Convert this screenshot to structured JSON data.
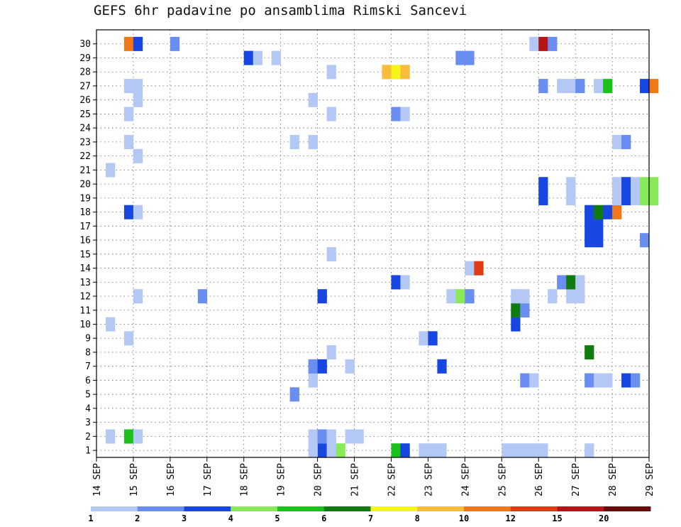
{
  "title": "GEFS 6hr padavine po ansamblima Rimski Sancevi",
  "chart_data": {
    "type": "heatmap",
    "title": "GEFS 6hr padavine po ansamblima Rimski Sancevi",
    "x_tick_labels": [
      "14 SEP",
      "15 SEP",
      "16 SEP",
      "17 SEP",
      "18 SEP",
      "19 SEP",
      "20 SEP",
      "21 SEP",
      "22 SEP",
      "23 SEP",
      "24 SEP",
      "25 SEP",
      "26 SEP",
      "27 SEP",
      "28 SEP",
      "29 SEP"
    ],
    "x_range_days": [
      14,
      29
    ],
    "time_step_hours": 6,
    "y_tick_labels": [
      1,
      2,
      3,
      4,
      5,
      6,
      7,
      8,
      9,
      10,
      11,
      12,
      13,
      14,
      15,
      16,
      17,
      18,
      19,
      20,
      21,
      22,
      23,
      24,
      25,
      26,
      27,
      28,
      29,
      30
    ],
    "y_label": "",
    "grid": true,
    "legend": {
      "position": "bottom",
      "bins": [
        {
          "label": "1",
          "color": "#b4c8f5"
        },
        {
          "label": "2",
          "color": "#6a8ef0"
        },
        {
          "label": "3",
          "color": "#1846e0"
        },
        {
          "label": "4",
          "color": "#88ea58"
        },
        {
          "label": "5",
          "color": "#1cc21c"
        },
        {
          "label": "6",
          "color": "#107c10"
        },
        {
          "label": "7",
          "color": "#f5f51a"
        },
        {
          "label": "8",
          "color": "#f8bc3a"
        },
        {
          "label": "10",
          "color": "#f07818"
        },
        {
          "label": "12",
          "color": "#e03c14"
        },
        {
          "label": "15",
          "color": "#b41414"
        },
        {
          "label": "20",
          "color": "#6a0c0c"
        }
      ]
    },
    "cells_units": "each cell = [member, day_of_september (start of 6h step), class_index (0 = 1-2 mm ... 11 = >20 mm)]",
    "cells": [
      [
        1,
        22.75,
        0
      ],
      [
        1,
        23.0,
        0
      ],
      [
        1,
        23.25,
        0
      ],
      [
        1,
        20.25,
        3
      ],
      [
        1,
        20.5,
        3
      ],
      [
        1,
        20.0,
        2
      ],
      [
        1,
        20.25,
        0
      ],
      [
        1,
        19.75,
        0
      ],
      [
        1,
        25.5,
        0
      ],
      [
        1,
        25.25,
        0
      ],
      [
        1,
        25.0,
        0
      ],
      [
        1,
        25.75,
        0
      ],
      [
        1,
        26.0,
        0
      ],
      [
        1,
        27.25,
        0
      ],
      [
        1,
        22.0,
        4
      ],
      [
        1,
        22.25,
        2
      ],
      [
        2,
        14.25,
        0
      ],
      [
        2,
        14.75,
        4
      ],
      [
        2,
        15.0,
        0
      ],
      [
        2,
        19.75,
        0
      ],
      [
        2,
        20.0,
        1
      ],
      [
        2,
        20.25,
        0
      ],
      [
        2,
        20.75,
        0
      ],
      [
        2,
        21.0,
        0
      ],
      [
        5,
        19.25,
        1
      ],
      [
        6,
        19.75,
        0
      ],
      [
        6,
        25.5,
        1
      ],
      [
        6,
        25.75,
        0
      ],
      [
        6,
        27.25,
        1
      ],
      [
        6,
        27.5,
        0
      ],
      [
        6,
        27.75,
        0
      ],
      [
        6,
        28.25,
        2
      ],
      [
        6,
        28.5,
        1
      ],
      [
        7,
        19.75,
        1
      ],
      [
        7,
        20.0,
        2
      ],
      [
        7,
        20.75,
        0
      ],
      [
        7,
        23.25,
        2
      ],
      [
        8,
        20.25,
        0
      ],
      [
        8,
        27.25,
        5
      ],
      [
        9,
        14.75,
        0
      ],
      [
        9,
        22.75,
        0
      ],
      [
        9,
        23.0,
        2
      ],
      [
        10,
        14.25,
        0
      ],
      [
        10,
        25.25,
        2
      ],
      [
        11,
        25.25,
        5
      ],
      [
        11,
        25.5,
        1
      ],
      [
        12,
        15.0,
        0
      ],
      [
        12,
        16.75,
        1
      ],
      [
        12,
        20.0,
        2
      ],
      [
        12,
        23.5,
        0
      ],
      [
        12,
        23.75,
        3
      ],
      [
        12,
        24.0,
        1
      ],
      [
        12,
        25.25,
        0
      ],
      [
        12,
        25.5,
        0
      ],
      [
        12,
        26.25,
        0
      ],
      [
        12,
        26.75,
        0
      ],
      [
        12,
        27.0,
        0
      ],
      [
        13,
        22.0,
        2
      ],
      [
        13,
        22.25,
        0
      ],
      [
        13,
        26.5,
        1
      ],
      [
        13,
        26.75,
        5
      ],
      [
        13,
        27.0,
        0
      ],
      [
        14,
        24.0,
        0
      ],
      [
        14,
        24.25,
        9
      ],
      [
        15,
        20.25,
        0
      ],
      [
        16,
        27.25,
        2
      ],
      [
        16,
        27.5,
        2
      ],
      [
        16,
        28.75,
        1
      ],
      [
        17,
        27.25,
        2
      ],
      [
        17,
        27.5,
        2
      ],
      [
        18,
        14.75,
        2
      ],
      [
        18,
        15.0,
        0
      ],
      [
        18,
        27.25,
        2
      ],
      [
        18,
        27.5,
        5
      ],
      [
        18,
        27.75,
        2
      ],
      [
        18,
        28.0,
        8
      ],
      [
        19,
        26.0,
        2
      ],
      [
        19,
        26.75,
        0
      ],
      [
        19,
        28.0,
        0
      ],
      [
        19,
        28.25,
        2
      ],
      [
        19,
        28.5,
        0
      ],
      [
        19,
        28.75,
        3
      ],
      [
        19,
        29.0,
        3
      ],
      [
        20,
        26.0,
        2
      ],
      [
        20,
        26.75,
        0
      ],
      [
        20,
        28.0,
        0
      ],
      [
        20,
        28.25,
        2
      ],
      [
        20,
        28.5,
        0
      ],
      [
        20,
        28.75,
        3
      ],
      [
        20,
        29.0,
        3
      ],
      [
        21,
        14.25,
        0
      ],
      [
        22,
        15.0,
        0
      ],
      [
        23,
        14.75,
        0
      ],
      [
        23,
        19.25,
        0
      ],
      [
        23,
        19.75,
        0
      ],
      [
        23,
        28.0,
        0
      ],
      [
        23,
        28.25,
        1
      ],
      [
        25,
        14.75,
        0
      ],
      [
        25,
        20.25,
        0
      ],
      [
        25,
        22.0,
        1
      ],
      [
        25,
        22.25,
        0
      ],
      [
        26,
        15.0,
        0
      ],
      [
        26,
        19.75,
        0
      ],
      [
        27,
        14.75,
        0
      ],
      [
        27,
        15.0,
        0
      ],
      [
        27,
        26.0,
        1
      ],
      [
        27,
        26.5,
        0
      ],
      [
        27,
        26.75,
        0
      ],
      [
        27,
        27.0,
        1
      ],
      [
        27,
        27.5,
        0
      ],
      [
        27,
        27.75,
        4
      ],
      [
        27,
        28.75,
        2
      ],
      [
        27,
        29.0,
        8
      ],
      [
        28,
        20.25,
        0
      ],
      [
        28,
        21.75,
        7
      ],
      [
        28,
        22.0,
        6
      ],
      [
        28,
        22.25,
        7
      ],
      [
        29,
        18.0,
        2
      ],
      [
        29,
        18.25,
        0
      ],
      [
        29,
        18.75,
        0
      ],
      [
        29,
        23.75,
        1
      ],
      [
        29,
        24.0,
        1
      ],
      [
        30,
        14.75,
        8
      ],
      [
        30,
        15.0,
        2
      ],
      [
        30,
        16.0,
        1
      ],
      [
        30,
        25.75,
        0
      ],
      [
        30,
        26.0,
        10
      ],
      [
        30,
        26.25,
        1
      ]
    ]
  }
}
